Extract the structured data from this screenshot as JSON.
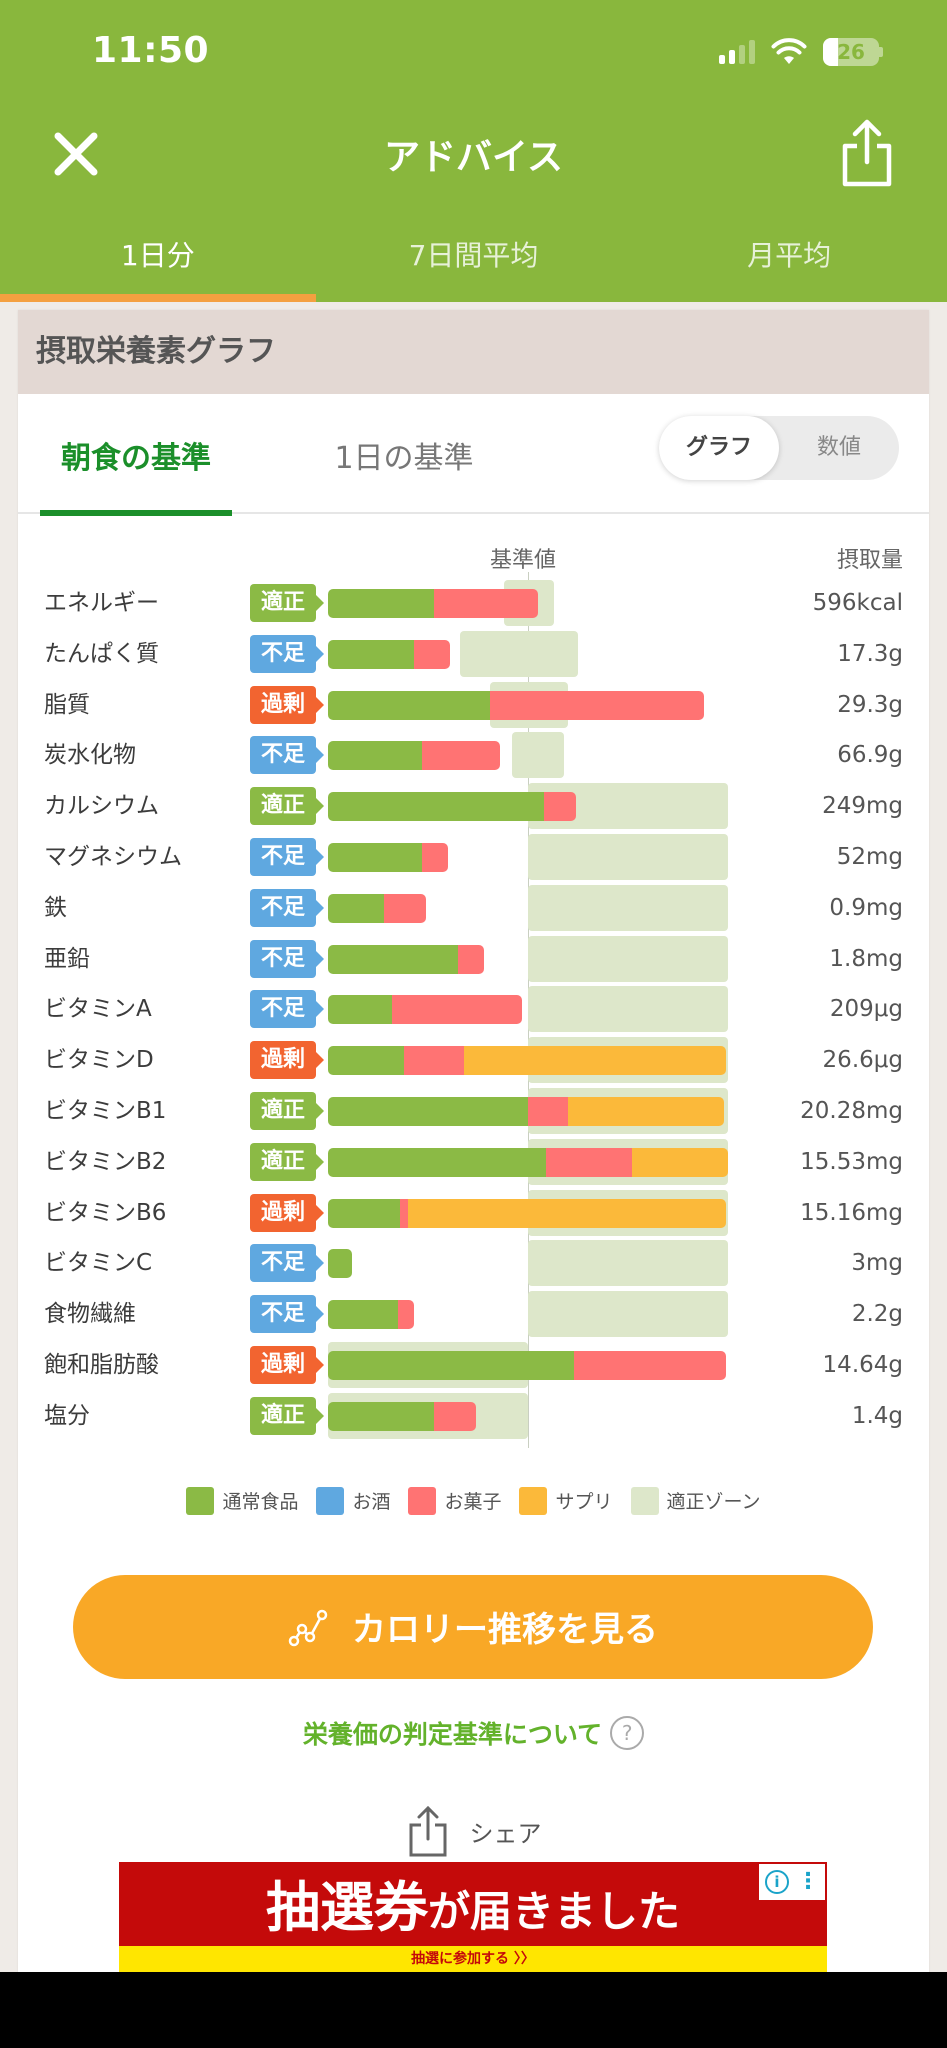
{
  "status_bar": {
    "time": "11:50",
    "battery": "26",
    "battery_level_pct": 26,
    "signal_bars": 2
  },
  "header": {
    "title": "アドバイス",
    "close_icon": "close-icon",
    "share_icon": "share-icon"
  },
  "period_tabs": [
    {
      "label": "1日分",
      "active": true
    },
    {
      "label": "7日間平均",
      "active": false
    },
    {
      "label": "月平均",
      "active": false
    }
  ],
  "card": {
    "title": "摂取栄養素グラフ",
    "standard_tabs": [
      {
        "label": "朝食の基準",
        "active": true
      },
      {
        "label": "1日の基準",
        "active": false
      }
    ],
    "view_toggle": {
      "graph": "グラフ",
      "numeric": "数値",
      "selected": "graph"
    }
  },
  "colors": {
    "brand_green": "#89b73d",
    "normal_food": "#8bba45",
    "alcohol": "#5fa8e0",
    "snack": "#ff7373",
    "supplement": "#fbb93a",
    "zone": "#dde7ca",
    "badge_ok": "#8bba45",
    "badge_low": "#5fa8e0",
    "badge_over": "#f26430",
    "cta_orange": "#f9a826"
  },
  "chart_data": {
    "type": "bar",
    "orientation": "horizontal-stacked",
    "title": "摂取栄養素グラフ",
    "reference_label": "基準値",
    "value_column_label": "摂取量",
    "unit": "% of reference (基準値 = 100)",
    "xlim": [
      0,
      200
    ],
    "legend": [
      {
        "key": "normal_food",
        "label": "通常食品"
      },
      {
        "key": "alcohol",
        "label": "お酒"
      },
      {
        "key": "snack",
        "label": "お菓子"
      },
      {
        "key": "supplement",
        "label": "サプリ"
      },
      {
        "key": "zone",
        "label": "適正ゾーン"
      }
    ],
    "legend_position": "bottom",
    "rows": [
      {
        "nutrient": "エネルギー",
        "status": "適正",
        "status_key": "ok",
        "value": "596kcal",
        "normal_food": 53,
        "alcohol": 0,
        "snack": 52,
        "supplement": 0,
        "zone": [
          88,
          113
        ]
      },
      {
        "nutrient": "たんぱく質",
        "status": "不足",
        "status_key": "low",
        "value": "17.3g",
        "normal_food": 43,
        "alcohol": 0,
        "snack": 18,
        "supplement": 0,
        "zone": [
          66,
          125
        ]
      },
      {
        "nutrient": "脂質",
        "status": "過剰",
        "status_key": "over",
        "value": "29.3g",
        "normal_food": 81,
        "alcohol": 0,
        "snack": 107,
        "supplement": 0,
        "zone": [
          81,
          120
        ]
      },
      {
        "nutrient": "炭水化物",
        "status": "不足",
        "status_key": "low",
        "value": "66.9g",
        "normal_food": 47,
        "alcohol": 0,
        "snack": 39,
        "supplement": 0,
        "zone": [
          92,
          118
        ]
      },
      {
        "nutrient": "カルシウム",
        "status": "適正",
        "status_key": "ok",
        "value": "249mg",
        "normal_food": 108,
        "alcohol": 0,
        "snack": 16,
        "supplement": 0,
        "zone": [
          100,
          200
        ]
      },
      {
        "nutrient": "マグネシウム",
        "status": "不足",
        "status_key": "low",
        "value": "52mg",
        "normal_food": 47,
        "alcohol": 0,
        "snack": 13,
        "supplement": 0,
        "zone": [
          100,
          200
        ]
      },
      {
        "nutrient": "鉄",
        "status": "不足",
        "status_key": "low",
        "value": "0.9mg",
        "normal_food": 28,
        "alcohol": 0,
        "snack": 21,
        "supplement": 0,
        "zone": [
          100,
          200
        ]
      },
      {
        "nutrient": "亜鉛",
        "status": "不足",
        "status_key": "low",
        "value": "1.8mg",
        "normal_food": 65,
        "alcohol": 0,
        "snack": 13,
        "supplement": 0,
        "zone": [
          100,
          200
        ]
      },
      {
        "nutrient": "ビタミンA",
        "status": "不足",
        "status_key": "low",
        "value": "209μg",
        "normal_food": 32,
        "alcohol": 0,
        "snack": 65,
        "supplement": 0,
        "zone": [
          100,
          200
        ]
      },
      {
        "nutrient": "ビタミンD",
        "status": "過剰",
        "status_key": "over",
        "value": "26.6μg",
        "normal_food": 38,
        "alcohol": 0,
        "snack": 30,
        "supplement": 131,
        "zone": [
          100,
          200
        ]
      },
      {
        "nutrient": "ビタミンB1",
        "status": "適正",
        "status_key": "ok",
        "value": "20.28mg",
        "normal_food": 100,
        "alcohol": 0,
        "snack": 20,
        "supplement": 78,
        "zone": [
          100,
          200
        ]
      },
      {
        "nutrient": "ビタミンB2",
        "status": "適正",
        "status_key": "ok",
        "value": "15.53mg",
        "normal_food": 109,
        "alcohol": 0,
        "snack": 43,
        "supplement": 48,
        "zone": [
          100,
          200
        ]
      },
      {
        "nutrient": "ビタミンB6",
        "status": "過剰",
        "status_key": "over",
        "value": "15.16mg",
        "normal_food": 36,
        "alcohol": 0,
        "snack": 4,
        "supplement": 159,
        "zone": [
          100,
          200
        ]
      },
      {
        "nutrient": "ビタミンC",
        "status": "不足",
        "status_key": "low",
        "value": "3mg",
        "normal_food": 12,
        "alcohol": 0,
        "snack": 0,
        "supplement": 0,
        "zone": [
          100,
          200
        ]
      },
      {
        "nutrient": "食物繊維",
        "status": "不足",
        "status_key": "low",
        "value": "2.2g",
        "normal_food": 35,
        "alcohol": 0,
        "snack": 8,
        "supplement": 0,
        "zone": [
          100,
          200
        ]
      },
      {
        "nutrient": "飽和脂肪酸",
        "status": "過剰",
        "status_key": "over",
        "value": "14.64g",
        "normal_food": 123,
        "alcohol": 0,
        "snack": 76,
        "supplement": 0,
        "zone": [
          0,
          100
        ]
      },
      {
        "nutrient": "塩分",
        "status": "適正",
        "status_key": "ok",
        "value": "1.4g",
        "normal_food": 53,
        "alcohol": 0,
        "snack": 21,
        "supplement": 0,
        "zone": [
          0,
          100
        ]
      }
    ]
  },
  "actions": {
    "calorie_button": "カロリー推移を見る",
    "calorie_icon": "line-chart-icon",
    "criteria_link": "栄養価の判定基準について",
    "help_icon_glyph": "?",
    "share_label": "シェア"
  },
  "ad": {
    "headline_big": "抽選券",
    "headline_small": "が届きました",
    "cta": "抽選に参加する 〉〉",
    "info_glyph": "i",
    "menu_glyph": "⋮"
  }
}
